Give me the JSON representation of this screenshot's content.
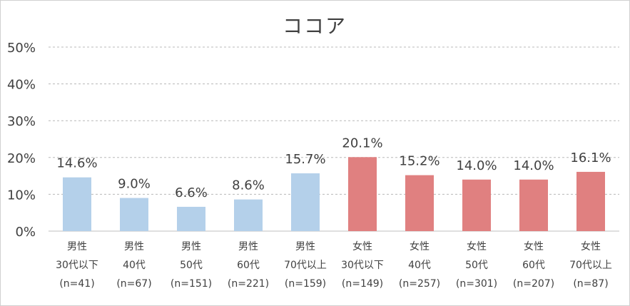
{
  "chart_data": {
    "type": "bar",
    "title": "ココア",
    "xlabel": "",
    "ylabel": "",
    "ylim": [
      0,
      50
    ],
    "y_tick_values": [
      0,
      10,
      20,
      30,
      40,
      50
    ],
    "y_tick_labels": [
      "0%",
      "10%",
      "20%",
      "30%",
      "40%",
      "50%"
    ],
    "grid": true,
    "legend": "none",
    "categories": [
      [
        "男性",
        "30代以下",
        "(n=41)"
      ],
      [
        "男性",
        "40代",
        "(n=67)"
      ],
      [
        "男性",
        "50代",
        "(n=151)"
      ],
      [
        "男性",
        "60代",
        "(n=221)"
      ],
      [
        "男性",
        "70代以上",
        "(n=159)"
      ],
      [
        "女性",
        "30代以下",
        "(n=149)"
      ],
      [
        "女性",
        "40代",
        "(n=257)"
      ],
      [
        "女性",
        "50代",
        "(n=301)"
      ],
      [
        "女性",
        "60代",
        "(n=207)"
      ],
      [
        "女性",
        "70代以上",
        "(n=87)"
      ]
    ],
    "values": [
      14.6,
      9.0,
      6.6,
      8.6,
      15.7,
      20.1,
      15.2,
      14.0,
      14.0,
      16.1
    ],
    "data_labels": [
      "14.6%",
      "9.0%",
      "6.6%",
      "8.6%",
      "15.7%",
      "20.1%",
      "15.2%",
      "14.0%",
      "14.0%",
      "16.1%"
    ],
    "colors": {
      "male": "#b4d0ea",
      "female": "#e08080"
    },
    "bar_color_groups": [
      "male",
      "male",
      "male",
      "male",
      "male",
      "female",
      "female",
      "female",
      "female",
      "female"
    ]
  }
}
